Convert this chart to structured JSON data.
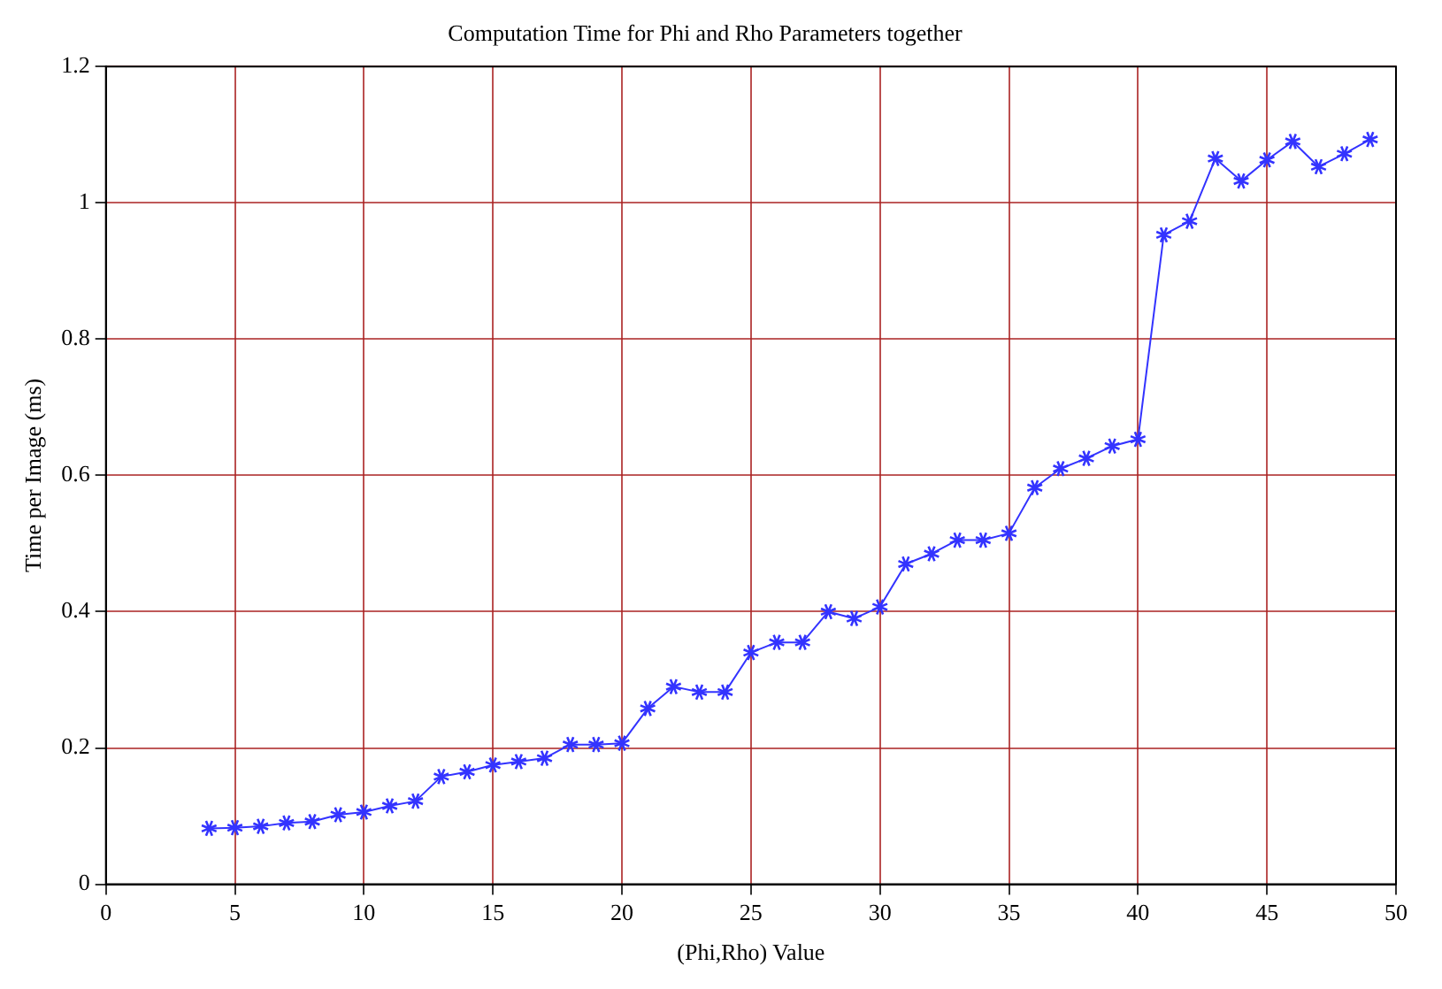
{
  "chart_data": {
    "type": "line",
    "title": "Computation Time for Phi and Rho Parameters together",
    "xlabel": "(Phi,Rho) Value",
    "ylabel": "Time per Image (ms)",
    "x": [
      4,
      5,
      6,
      7,
      8,
      9,
      10,
      11,
      12,
      13,
      14,
      15,
      16,
      17,
      18,
      19,
      20,
      21,
      22,
      23,
      24,
      25,
      26,
      27,
      28,
      29,
      30,
      31,
      32,
      33,
      34,
      35,
      36,
      37,
      38,
      39,
      40,
      41,
      42,
      43,
      44,
      45,
      46,
      47,
      48,
      49
    ],
    "series": [
      {
        "color": "#3333ff",
        "values": [
          0.082,
          0.083,
          0.085,
          0.09,
          0.092,
          0.102,
          0.106,
          0.115,
          0.122,
          0.158,
          0.165,
          0.175,
          0.18,
          0.185,
          0.205,
          0.205,
          0.207,
          0.258,
          0.29,
          0.282,
          0.282,
          0.34,
          0.355,
          0.355,
          0.4,
          0.39,
          0.407,
          0.47,
          0.485,
          0.505,
          0.505,
          0.515,
          0.582,
          0.61,
          0.625,
          0.643,
          0.653,
          0.953,
          0.973,
          1.065,
          1.032,
          1.063,
          1.09,
          1.053,
          1.072,
          1.093
        ]
      }
    ],
    "xlim": [
      0,
      50
    ],
    "xticks": [
      0,
      5,
      10,
      15,
      20,
      25,
      30,
      35,
      40,
      45,
      50
    ],
    "ylim": [
      0,
      1.2
    ],
    "yticks": [
      0,
      0.2,
      0.4,
      0.6,
      0.8,
      1,
      1.2
    ],
    "grid": true,
    "legend": false,
    "marker": "star",
    "line_style": "solid"
  }
}
